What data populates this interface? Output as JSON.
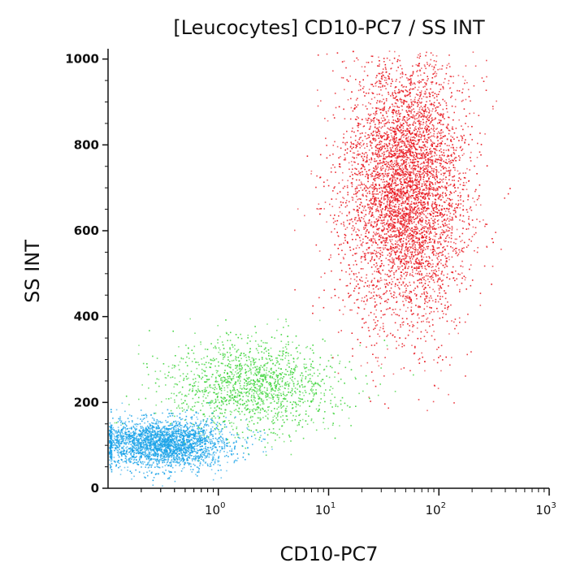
{
  "chart_data": {
    "type": "scatter",
    "title": "[Leucocytes] CD10-PC7 / SS INT",
    "xlabel": "CD10-PC7",
    "ylabel": "SS INT",
    "x_scale": "log",
    "xlim": [
      0.1,
      1000
    ],
    "ylim": [
      0,
      1024
    ],
    "x_ticks": [
      {
        "value": 1,
        "base": "10",
        "exp": "0"
      },
      {
        "value": 10,
        "base": "10",
        "exp": "1"
      },
      {
        "value": 100,
        "base": "10",
        "exp": "2"
      },
      {
        "value": 1000,
        "base": "10",
        "exp": "3"
      }
    ],
    "y_ticks": [
      0,
      200,
      400,
      600,
      800,
      1000
    ],
    "grid": false,
    "populations": [
      {
        "color": "#e8131b",
        "count": 5200,
        "log10_x_center": 1.7,
        "log10_x_sd": 0.28,
        "y_center": 700,
        "y_sd": 160
      },
      {
        "color": "#3dd43a",
        "count": 1500,
        "log10_x_center": 0.3,
        "log10_x_sd": 0.38,
        "y_center": 240,
        "y_sd": 55
      },
      {
        "color": "#1ba3e8",
        "count": 2600,
        "log10_x_center": -0.5,
        "log10_x_sd": 0.3,
        "y_center": 105,
        "y_sd": 28
      }
    ]
  }
}
